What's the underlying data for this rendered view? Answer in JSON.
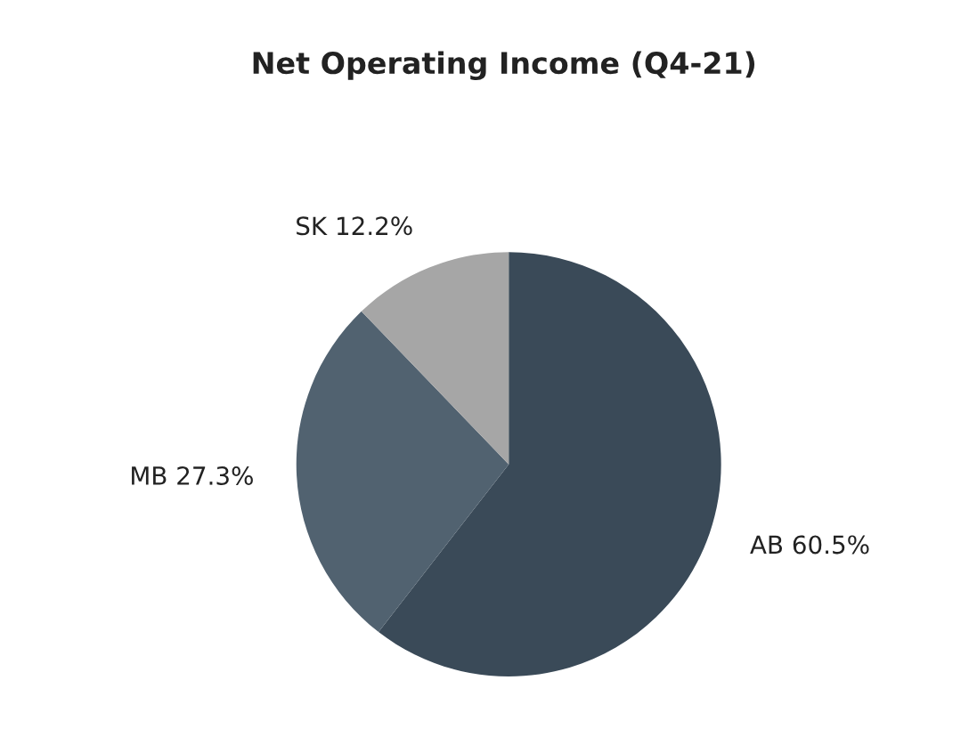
{
  "chart_data": {
    "type": "pie",
    "title": "Net Operating Income (Q4-21)",
    "categories": [
      "AB",
      "MB",
      "SK"
    ],
    "values": [
      60.5,
      27.3,
      12.2
    ],
    "value_labels": [
      "60.5%",
      "27.3%",
      "12.2%"
    ],
    "colors": [
      "#3a4a58",
      "#516270",
      "#a6a6a6"
    ],
    "legend": false
  }
}
